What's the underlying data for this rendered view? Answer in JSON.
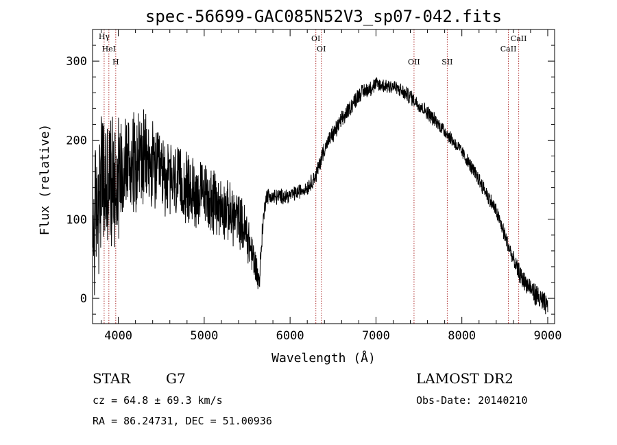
{
  "chart_data": {
    "type": "line",
    "title": "spec-56699-GAC085N52V3_sp07-042.fits",
    "xlabel": "Wavelength (Å)",
    "ylabel": "Flux (relative)",
    "xlim": [
      3700,
      9080
    ],
    "ylim": [
      -32,
      340
    ],
    "xticks": [
      "4000",
      "5000",
      "6000",
      "7000",
      "8000",
      "9000"
    ],
    "yticks": [
      "0",
      "100",
      "200",
      "300"
    ],
    "grid": false,
    "spectrum_color": "#000000",
    "line_marker_color": "#b03030",
    "spectral_lines": [
      {
        "name": "Hγ",
        "wavelength": 3835
      },
      {
        "name": "HeI",
        "wavelength": 3890
      },
      {
        "name": "H",
        "wavelength": 3970
      },
      {
        "name": "OI",
        "wavelength": 6300
      },
      {
        "name": "OI",
        "wavelength": 6364
      },
      {
        "name": "OII",
        "wavelength": 7443
      },
      {
        "name": "SII",
        "wavelength": 7830
      },
      {
        "name": "CaII",
        "wavelength": 8542
      },
      {
        "name": "CaII",
        "wavelength": 8662
      }
    ],
    "continuum": {
      "x": [
        3700,
        3800,
        3900,
        4000,
        4100,
        4200,
        4400,
        4600,
        4800,
        5000,
        5200,
        5400,
        5500,
        5600,
        5640,
        5680,
        5720,
        5800,
        6000,
        6200,
        6300,
        6400,
        6600,
        6800,
        7000,
        7200,
        7400,
        7600,
        7800,
        8000,
        8200,
        8400,
        8500,
        8600,
        8700,
        8800,
        8900,
        9000
      ],
      "y": [
        80,
        150,
        140,
        160,
        170,
        180,
        165,
        150,
        138,
        130,
        115,
        100,
        80,
        40,
        20,
        90,
        130,
        128,
        130,
        140,
        155,
        190,
        225,
        258,
        270,
        268,
        255,
        235,
        212,
        185,
        150,
        110,
        80,
        48,
        25,
        12,
        0,
        -12
      ]
    },
    "noise_amplitude": {
      "x": [
        3700,
        3900,
        4200,
        4500,
        4800,
        5200,
        5500,
        5700,
        6000,
        6500,
        7000,
        8000,
        8600,
        9000
      ],
      "y": [
        85,
        80,
        60,
        45,
        40,
        35,
        30,
        10,
        8,
        10,
        9,
        8,
        10,
        14
      ]
    },
    "resolution_angstrom": 2.5
  },
  "info": {
    "obj_class": "STAR",
    "subclass": "G7",
    "survey": "LAMOST DR2",
    "velocity": "cz = 64.8 ± 69.3 km/s",
    "obs_date": "Obs-Date: 20140210",
    "coords": "RA =  86.24731, DEC =  51.00936"
  }
}
